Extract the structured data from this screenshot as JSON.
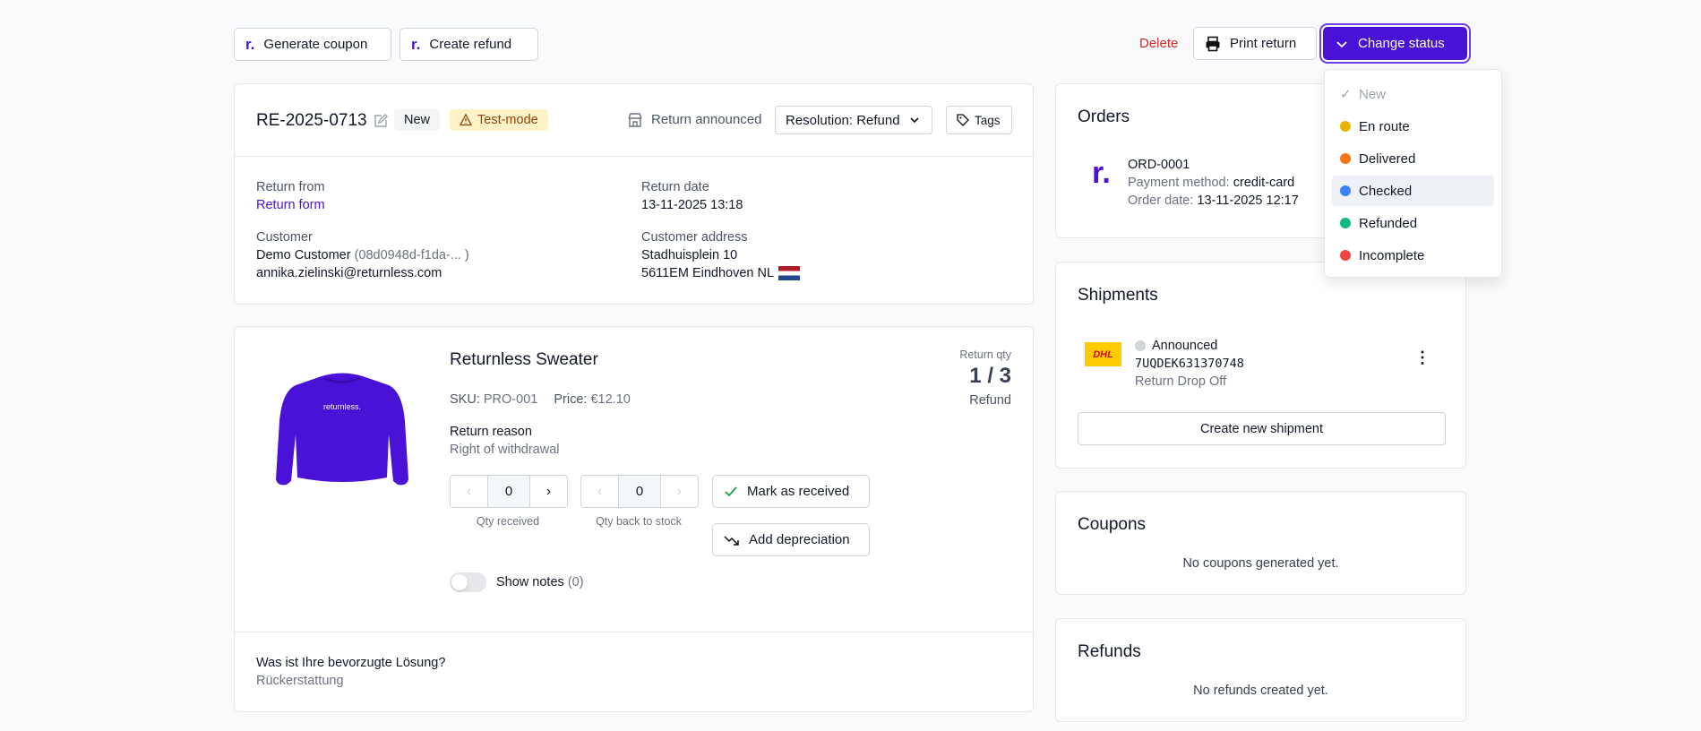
{
  "toolbar": {
    "generate_coupon": "Generate coupon",
    "create_refund": "Create refund",
    "delete": "Delete",
    "print_return": "Print return",
    "change_status": "Change status"
  },
  "return": {
    "id": "RE-2025-0713",
    "status_badge": "New",
    "test_badge": "Test-mode",
    "announced": "Return announced",
    "resolution": "Resolution: Refund",
    "tags": "Tags",
    "from_label": "Return from",
    "from_value": "Return form",
    "date_label": "Return date",
    "date_value": "13-11-2025 13:18",
    "customer_label": "Customer",
    "customer_name": "Demo Customer",
    "customer_id": "(08d0948d-f1da-... )",
    "customer_email": "annika.zielinski@returnless.com",
    "address_label": "Customer address",
    "address_line1": "Stadhuisplein 10",
    "address_line2": "5611EM Eindhoven NL"
  },
  "product": {
    "name": "Returnless Sweater",
    "sku_label": "SKU:",
    "sku": "PRO-001",
    "price_label": "Price:",
    "price": "€12.10",
    "qty_label": "Return qty",
    "qty": "1 / 3",
    "qty_resolution": "Refund",
    "reason_label": "Return reason",
    "reason": "Right of withdrawal",
    "qty_received": "0",
    "qty_received_label": "Qty received",
    "qty_stock": "0",
    "qty_stock_label": "Qty back to stock",
    "mark_received": "Mark as received",
    "add_depreciation": "Add depreciation",
    "show_notes": "Show notes",
    "notes_count": "(0)",
    "sweater_text": "returnless."
  },
  "question": {
    "q": "Was ist Ihre bevorzugte Lösung?",
    "a": "Rückerstattung"
  },
  "orders": {
    "title": "Orders",
    "order_id": "ORD-0001",
    "payment_label": "Payment method:",
    "payment": "credit-card",
    "date_label": "Order date:",
    "date": "13-11-2025 12:17"
  },
  "shipments": {
    "title": "Shipments",
    "status": "Announced",
    "tracking": "7UQDEK631370748",
    "type": "Return Drop Off",
    "carrier": "DHL",
    "create": "Create new shipment"
  },
  "coupons": {
    "title": "Coupons",
    "empty": "No coupons generated yet."
  },
  "refunds": {
    "title": "Refunds",
    "empty": "No refunds created yet."
  },
  "status_menu": {
    "items": [
      {
        "label": "New",
        "color": "#9ca3af"
      },
      {
        "label": "En route",
        "color": "#eab308"
      },
      {
        "label": "Delivered",
        "color": "#f97316"
      },
      {
        "label": "Checked",
        "color": "#3b82f6"
      },
      {
        "label": "Refunded",
        "color": "#10b981"
      },
      {
        "label": "Incomplete",
        "color": "#ef4444"
      }
    ]
  },
  "colors": {
    "brand": "#4a12d6",
    "danger": "#dc2626"
  }
}
